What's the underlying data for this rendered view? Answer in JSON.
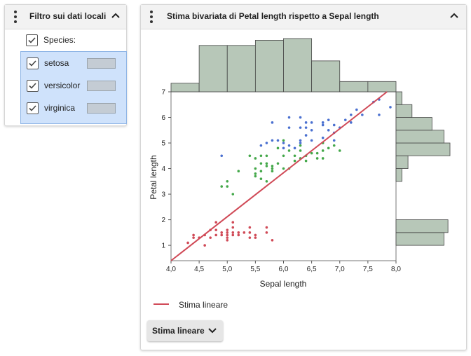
{
  "filter_panel": {
    "title": "Filtro sui dati locali",
    "group_label": "Species:",
    "items": [
      {
        "label": "setosa",
        "checked": true
      },
      {
        "label": "versicolor",
        "checked": true
      },
      {
        "label": "virginica",
        "checked": true
      }
    ]
  },
  "chart_panel": {
    "title": "Stima bivariata di Petal length rispetto a Sepal length",
    "legend_label": "Stima lineare",
    "fit_button_label": "Stima lineare"
  },
  "colors": {
    "setosa": "#d04a57",
    "versicolor": "#44a84a",
    "virginica": "#4a70d0",
    "fit_line": "#d04a57",
    "histogram_fill": "#b7c7b8",
    "histogram_stroke": "#444444"
  },
  "chart_data": {
    "type": "scatter",
    "xlabel": "Sepal length",
    "ylabel": "Petal length",
    "xlim": [
      4.0,
      8.0
    ],
    "ylim": [
      0.4,
      7.0
    ],
    "xticks": [
      "4,0",
      "4,5",
      "5,0",
      "5,5",
      "6,0",
      "6,5",
      "7,0",
      "7,5",
      "8,0"
    ],
    "yticks": [
      "1",
      "2",
      "3",
      "4",
      "5",
      "6",
      "7"
    ],
    "fit_line": {
      "x": [
        4.0,
        7.84
      ],
      "y": [
        0.11,
        7.0
      ]
    },
    "top_histogram": {
      "bins": [
        4.0,
        4.5,
        5.0,
        5.5,
        6.0,
        6.5,
        7.0,
        7.5,
        8.0
      ],
      "counts": [
        5,
        27,
        27,
        30,
        31,
        18,
        6,
        6
      ]
    },
    "right_histogram": {
      "bins": [
        1,
        1.5,
        2,
        2.5,
        3,
        3.5,
        4,
        4.5,
        5,
        5.5,
        6,
        6.5,
        7
      ],
      "counts": [
        24,
        26,
        0,
        0,
        0,
        3,
        6,
        27,
        24,
        18,
        8,
        3,
        1
      ]
    },
    "series": [
      {
        "name": "setosa",
        "points": [
          [
            4.3,
            1.1
          ],
          [
            4.4,
            1.3
          ],
          [
            4.4,
            1.4
          ],
          [
            4.5,
            1.3
          ],
          [
            4.6,
            1.0
          ],
          [
            4.6,
            1.4
          ],
          [
            4.7,
            1.3
          ],
          [
            4.7,
            1.6
          ],
          [
            4.8,
            1.4
          ],
          [
            4.8,
            1.6
          ],
          [
            4.8,
            1.9
          ],
          [
            4.9,
            1.4
          ],
          [
            4.9,
            1.5
          ],
          [
            5.0,
            1.2
          ],
          [
            5.0,
            1.3
          ],
          [
            5.0,
            1.4
          ],
          [
            5.0,
            1.5
          ],
          [
            5.0,
            1.6
          ],
          [
            5.1,
            1.4
          ],
          [
            5.1,
            1.5
          ],
          [
            5.1,
            1.7
          ],
          [
            5.1,
            1.9
          ],
          [
            5.2,
            1.4
          ],
          [
            5.2,
            1.5
          ],
          [
            5.3,
            1.5
          ],
          [
            5.4,
            1.3
          ],
          [
            5.4,
            1.5
          ],
          [
            5.4,
            1.7
          ],
          [
            5.5,
            1.3
          ],
          [
            5.5,
            1.4
          ],
          [
            5.7,
            1.5
          ],
          [
            5.7,
            1.7
          ],
          [
            5.8,
            1.2
          ]
        ]
      },
      {
        "name": "versicolor",
        "points": [
          [
            4.9,
            3.3
          ],
          [
            5.0,
            3.5
          ],
          [
            5.0,
            3.3
          ],
          [
            5.1,
            3.0
          ],
          [
            5.2,
            3.9
          ],
          [
            5.4,
            4.5
          ],
          [
            5.5,
            4.0
          ],
          [
            5.5,
            3.8
          ],
          [
            5.5,
            3.7
          ],
          [
            5.5,
            4.4
          ],
          [
            5.6,
            3.6
          ],
          [
            5.6,
            3.9
          ],
          [
            5.6,
            4.2
          ],
          [
            5.6,
            4.5
          ],
          [
            5.7,
            3.5
          ],
          [
            5.7,
            4.1
          ],
          [
            5.7,
            4.2
          ],
          [
            5.7,
            4.5
          ],
          [
            5.8,
            3.9
          ],
          [
            5.8,
            4.0
          ],
          [
            5.8,
            4.1
          ],
          [
            5.9,
            4.2
          ],
          [
            5.9,
            4.8
          ],
          [
            6.0,
            4.0
          ],
          [
            6.0,
            4.5
          ],
          [
            6.0,
            5.1
          ],
          [
            6.1,
            4.0
          ],
          [
            6.1,
            4.7
          ],
          [
            6.2,
            4.3
          ],
          [
            6.2,
            4.5
          ],
          [
            6.3,
            4.4
          ],
          [
            6.3,
            4.7
          ],
          [
            6.3,
            4.9
          ],
          [
            6.4,
            4.3
          ],
          [
            6.4,
            4.5
          ],
          [
            6.5,
            4.6
          ],
          [
            6.6,
            4.4
          ],
          [
            6.6,
            4.6
          ],
          [
            6.7,
            4.4
          ],
          [
            6.7,
            4.7
          ],
          [
            6.7,
            5.0
          ],
          [
            6.8,
            4.8
          ],
          [
            6.9,
            4.9
          ],
          [
            7.0,
            4.7
          ]
        ]
      },
      {
        "name": "virginica",
        "points": [
          [
            4.9,
            4.5
          ],
          [
            5.6,
            4.9
          ],
          [
            5.7,
            5.0
          ],
          [
            5.8,
            5.1
          ],
          [
            5.9,
            5.1
          ],
          [
            6.0,
            4.8
          ],
          [
            6.0,
            5.0
          ],
          [
            6.1,
            4.9
          ],
          [
            6.1,
            5.6
          ],
          [
            6.2,
            4.8
          ],
          [
            6.3,
            5.0
          ],
          [
            6.3,
            5.1
          ],
          [
            6.3,
            5.6
          ],
          [
            6.4,
            5.3
          ],
          [
            6.4,
            5.6
          ],
          [
            6.5,
            5.1
          ],
          [
            6.5,
            5.5
          ],
          [
            6.7,
            5.2
          ],
          [
            6.7,
            5.7
          ],
          [
            6.8,
            5.5
          ],
          [
            6.9,
            5.1
          ],
          [
            6.9,
            5.7
          ],
          [
            7.1,
            5.9
          ],
          [
            7.2,
            5.8
          ],
          [
            7.2,
            6.1
          ],
          [
            7.3,
            6.3
          ],
          [
            7.4,
            6.1
          ],
          [
            7.6,
            6.6
          ],
          [
            7.7,
            6.1
          ],
          [
            7.7,
            6.7
          ],
          [
            7.9,
            6.4
          ],
          [
            5.8,
            5.8
          ],
          [
            6.1,
            6.0
          ],
          [
            6.3,
            6.0
          ],
          [
            6.4,
            5.8
          ],
          [
            6.5,
            5.8
          ],
          [
            6.7,
            5.8
          ],
          [
            6.8,
            5.9
          ],
          [
            6.9,
            5.4
          ],
          [
            7.0,
            5.6
          ]
        ]
      }
    ]
  }
}
